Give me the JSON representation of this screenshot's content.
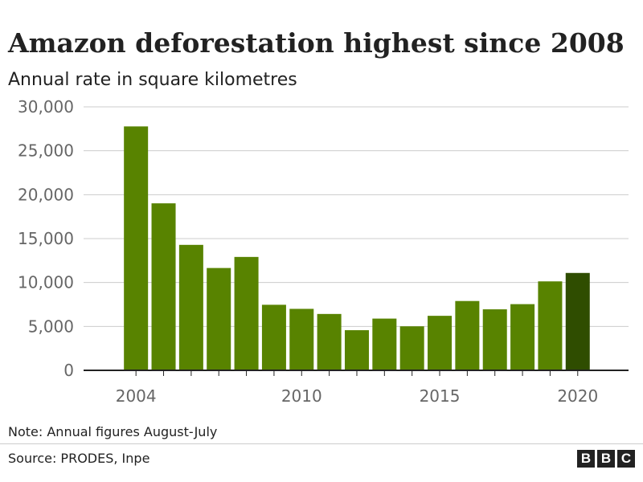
{
  "header": {
    "title": "Amazon deforestation highest since 2008",
    "subtitle": "Annual rate in square kilometres"
  },
  "chart_data": {
    "type": "bar",
    "title": "Amazon deforestation highest since 2008",
    "subtitle": "Annual rate in square kilometres",
    "xlabel": "",
    "ylabel": "",
    "categories": [
      "2004",
      "2005",
      "2006",
      "2007",
      "2008",
      "2009",
      "2010",
      "2011",
      "2012",
      "2013",
      "2014",
      "2015",
      "2016",
      "2017",
      "2018",
      "2019",
      "2020"
    ],
    "values": [
      27772,
      19014,
      14286,
      11651,
      12911,
      7464,
      7000,
      6418,
      4571,
      5891,
      5012,
      6207,
      7893,
      6947,
      7536,
      10129,
      11088
    ],
    "highlight_index": 16,
    "colors": {
      "bar": "#588300",
      "highlight": "#2f4d00",
      "grid": "#cccccc",
      "axis": "#222222"
    },
    "ylim": [
      0,
      30000
    ],
    "y_ticks": [
      0,
      5000,
      10000,
      15000,
      20000,
      25000,
      30000
    ],
    "y_tick_labels": [
      "0",
      "5,000",
      "10,000",
      "15,000",
      "20,000",
      "25,000",
      "30,000"
    ],
    "x_tick_labels": [
      {
        "year": "2004",
        "label": "2004"
      },
      {
        "year": "2010",
        "label": "2010"
      },
      {
        "year": "2015",
        "label": "2015"
      },
      {
        "year": "2020",
        "label": "2020"
      }
    ],
    "grid": true,
    "legend": "none"
  },
  "footer": {
    "note": "Note: Annual figures August-July",
    "source": "Source: PRODES, Inpe",
    "logo": [
      "B",
      "B",
      "C"
    ]
  }
}
